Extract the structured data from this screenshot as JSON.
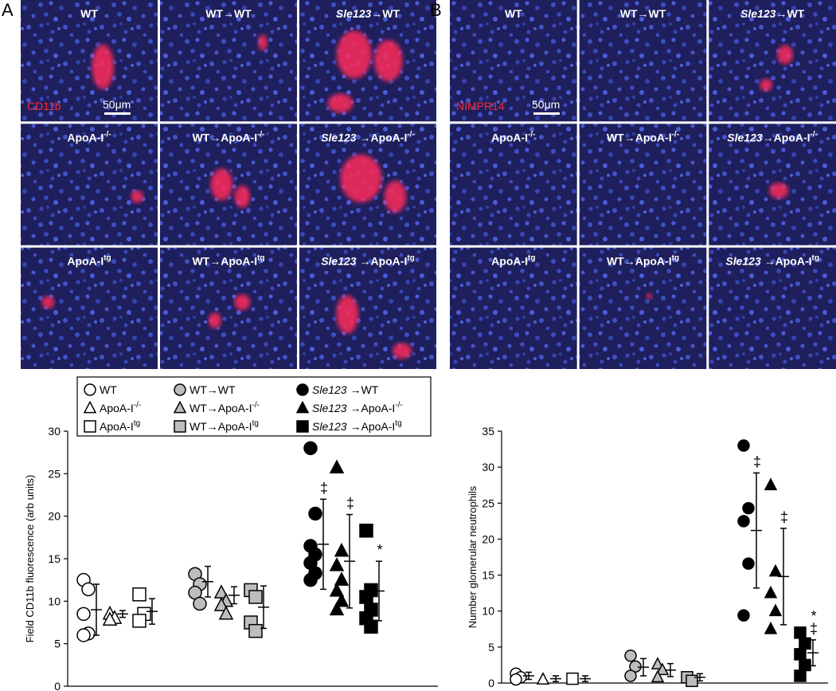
{
  "panels": [
    {
      "letter": "A",
      "stain": "CD11b",
      "scale": "50μm",
      "cells": [
        [
          {
            "text": "WT"
          }
        ],
        [
          {
            "text": "WT→WT"
          }
        ],
        [
          {
            "text": "Sle123",
            "italic": true
          },
          {
            "text": "→WT"
          }
        ],
        [
          {
            "text": "ApoA-I"
          },
          {
            "text": "-/-",
            "sup": true
          }
        ],
        [
          {
            "text": "WT→ApoA-I"
          },
          {
            "text": "-/-",
            "sup": true
          }
        ],
        [
          {
            "text": "Sle123",
            "italic": true
          },
          {
            "text": " →ApoA-I"
          },
          {
            "text": "-/-",
            "sup": true
          }
        ],
        [
          {
            "text": "ApoA-I"
          },
          {
            "text": "tg",
            "sup": true
          }
        ],
        [
          {
            "text": "WT→ApoA-I"
          },
          {
            "text": "tg",
            "sup": true
          }
        ],
        [
          {
            "text": "Sle123",
            "italic": true
          },
          {
            "text": " →ApoA-I"
          },
          {
            "text": "tg",
            "sup": true
          }
        ]
      ]
    },
    {
      "letter": "B",
      "stain": "NIMPR14",
      "scale": "50μm",
      "cells": [
        [
          {
            "text": "WT"
          }
        ],
        [
          {
            "text": "WT→WT"
          }
        ],
        [
          {
            "text": "Sle123",
            "italic": true
          },
          {
            "text": "→WT"
          }
        ],
        [
          {
            "text": "ApoA-I"
          },
          {
            "text": "-/-",
            "sup": true
          }
        ],
        [
          {
            "text": "WT→ApoA-I"
          },
          {
            "text": "-/-",
            "sup": true
          }
        ],
        [
          {
            "text": "Sle123",
            "italic": true
          },
          {
            "text": "→ApoA-I"
          },
          {
            "text": "-/-",
            "sup": true
          }
        ],
        [
          {
            "text": "ApoA-I"
          },
          {
            "text": "tg",
            "sup": true
          }
        ],
        [
          {
            "text": "WT→ApoA-I"
          },
          {
            "text": "tg",
            "sup": true
          }
        ],
        [
          {
            "text": "Sle123",
            "italic": true
          },
          {
            "text": " →ApoA-I"
          },
          {
            "text": "tg",
            "sup": true
          }
        ]
      ]
    }
  ],
  "chart_data": [
    {
      "type": "strip",
      "ylabel": "Field CD11b fluorescence (arb units)",
      "legend": true,
      "ylim": [
        0,
        30
      ],
      "yticks": [
        0,
        5,
        10,
        15,
        20,
        25,
        30
      ],
      "series": [
        {
          "name": [
            {
              "text": "WT"
            }
          ],
          "marker": "circle",
          "color": "#ffffff",
          "values": [
            12.5,
            11.4,
            8.5,
            6.2,
            6.0
          ],
          "mean": 9.0,
          "sd": 3.0
        },
        {
          "name": [
            {
              "text": "ApoA-I"
            },
            {
              "text": "-/-",
              "sup": true
            }
          ],
          "marker": "triangle",
          "color": "#ffffff",
          "values": [
            8.5,
            8.0,
            7.8
          ],
          "mean": 8.5,
          "sd": 0.4
        },
        {
          "name": [
            {
              "text": "ApoA-I"
            },
            {
              "text": "tg",
              "sup": true
            }
          ],
          "marker": "square",
          "color": "#ffffff",
          "values": [
            10.8,
            8.5,
            7.7
          ],
          "mean": 8.8,
          "sd": 1.5
        },
        {
          "name": [
            {
              "text": "WT→WT"
            }
          ],
          "marker": "circle",
          "color": "#bdbdbd",
          "values": [
            13.2,
            12.0,
            11.0,
            9.7
          ],
          "mean": 12.3,
          "sd": 1.8
        },
        {
          "name": [
            {
              "text": "WT→ApoA-I"
            },
            {
              "text": "-/-",
              "sup": true
            }
          ],
          "marker": "triangle",
          "color": "#bdbdbd",
          "values": [
            11.0,
            10.0,
            9.5,
            8.5
          ],
          "mean": 10.7,
          "sd": 1.0
        },
        {
          "name": [
            {
              "text": "WT→ApoA-I"
            },
            {
              "text": "tg",
              "sup": true
            }
          ],
          "marker": "square",
          "color": "#bdbdbd",
          "values": [
            11.3,
            10.5,
            7.5,
            6.5
          ],
          "mean": 9.3,
          "sd": 2.5
        },
        {
          "name": [
            {
              "text": "Sle123",
              "italic": true
            },
            {
              "text": " →WT"
            }
          ],
          "marker": "circle",
          "color": "#000000",
          "values": [
            28.0,
            20.3,
            16.5,
            15.5,
            14.5,
            13.3,
            12.5
          ],
          "mean": 16.7,
          "sd": 5.3,
          "annotations": [
            "‡"
          ]
        },
        {
          "name": [
            {
              "text": "Sle123",
              "italic": true
            },
            {
              "text": " →ApoA-I"
            },
            {
              "text": "-/-",
              "sup": true
            }
          ],
          "marker": "triangle",
          "color": "#000000",
          "values": [
            25.7,
            15.9,
            14.2,
            12.5,
            11.2,
            10.0,
            9.0
          ],
          "mean": 14.7,
          "sd": 5.5,
          "annotations": [
            "‡"
          ]
        },
        {
          "name": [
            {
              "text": "Sle123",
              "italic": true
            },
            {
              "text": " →ApoA-I"
            },
            {
              "text": "tg",
              "sup": true
            }
          ],
          "marker": "square",
          "color": "#000000",
          "values": [
            18.3,
            11.3,
            10.5,
            9.0,
            8.0,
            7.0
          ],
          "mean": 11.2,
          "sd": 3.5,
          "annotations": [
            "*"
          ]
        }
      ]
    },
    {
      "type": "strip",
      "ylabel": "Number glomerular neutrophils",
      "legend": false,
      "ylim": [
        0,
        35
      ],
      "yticks": [
        0,
        5,
        10,
        15,
        20,
        25,
        30,
        35
      ],
      "series": [
        {
          "marker": "circle",
          "color": "#ffffff",
          "values": [
            1.3,
            0.8,
            0.5
          ],
          "mean": 1.0,
          "sd": 0.5
        },
        {
          "marker": "triangle",
          "color": "#ffffff",
          "values": [
            0.5
          ],
          "mean": 0.6,
          "sd": 0.4
        },
        {
          "marker": "square",
          "color": "#ffffff",
          "values": [
            0.6
          ],
          "mean": 0.6,
          "sd": 0.4
        },
        {
          "marker": "circle",
          "color": "#bdbdbd",
          "values": [
            3.8,
            2.3,
            1.0
          ],
          "mean": 2.2,
          "sd": 1.2
        },
        {
          "marker": "triangle",
          "color": "#bdbdbd",
          "values": [
            2.6,
            1.8,
            0.8
          ],
          "mean": 1.8,
          "sd": 0.9
        },
        {
          "marker": "square",
          "color": "#bdbdbd",
          "values": [
            0.8,
            0.3
          ],
          "mean": 0.8,
          "sd": 0.5
        },
        {
          "marker": "circle",
          "color": "#000000",
          "values": [
            33.0,
            24.3,
            22.5,
            16.6,
            9.4
          ],
          "mean": 21.2,
          "sd": 8.0,
          "annotations": [
            "‡"
          ]
        },
        {
          "marker": "triangle",
          "color": "#000000",
          "values": [
            27.5,
            15.5,
            12.5,
            10.0,
            7.5
          ],
          "mean": 14.8,
          "sd": 6.7,
          "annotations": [
            "‡"
          ]
        },
        {
          "marker": "square",
          "color": "#000000",
          "values": [
            7.0,
            5.5,
            4.0,
            2.5,
            1.0
          ],
          "mean": 4.2,
          "sd": 1.8,
          "annotations": [
            "*",
            "‡"
          ]
        }
      ]
    }
  ]
}
